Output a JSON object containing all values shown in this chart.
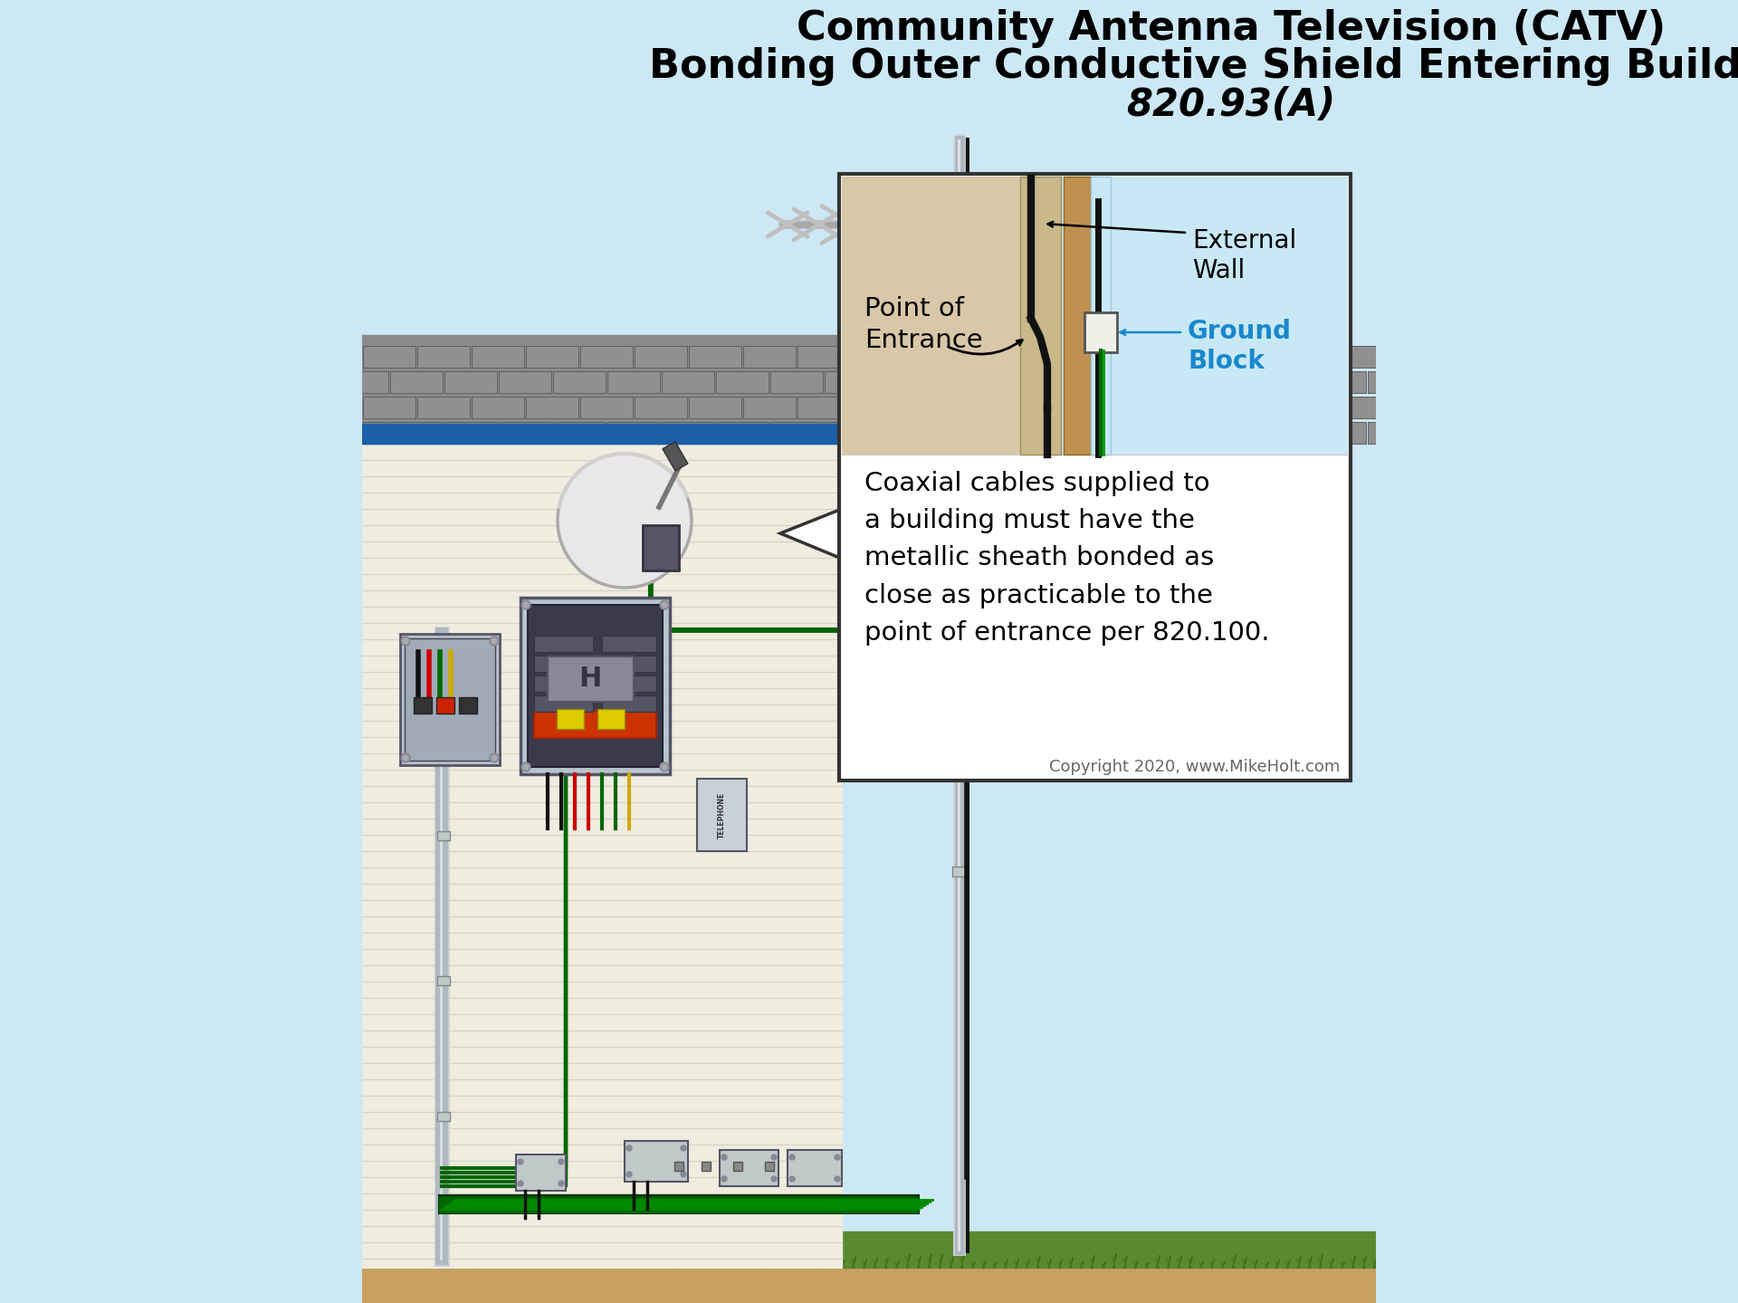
{
  "bg_color": "#cce8f4",
  "title_line1": "Community Antenna Television (CATV)",
  "title_line2": "Bonding Outer Conductive Shield Entering Building",
  "title_line3": "820.93(A)",
  "title_color": "#000000",
  "title_fontsize": 32,
  "house_wall_color": "#f0ece0",
  "house_siding_lines": "#d8d4c4",
  "roof_brick_color": "#909090",
  "roof_trim_color": "#1a5fa8",
  "ground_color": "#c8a060",
  "grass_color": "#5a8a30",
  "inset_bg_top": "#c8e8f5",
  "inset_wall_tan": "#d0bc9a",
  "inset_wood": "#c8a060",
  "inset_wood_dark": "#b88840",
  "label_external_wall": "External\nWall",
  "label_ground_block": "Ground\nBlock",
  "label_ground_block_color": "#1a88cc",
  "label_point_entrance": "Point of\nEntrance",
  "callout_text": "Coaxial cables supplied to\na building must have the\nmetallic sheath bonded as\nclose as practicable to the\npoint of entrance per 820.100.",
  "copyright_text": "Copyright 2020, www.MikeHolt.com",
  "wire_green": "#006600",
  "wire_black": "#111111",
  "wire_red": "#cc0000",
  "wire_white": "#e8e8e8",
  "wire_yellow": "#ccaa00",
  "conduit_color": "#b8c0c8",
  "conduit_dark": "#8090a0",
  "panel_color": "#b0bcc8",
  "panel_dark": "#8898a8",
  "antenna_color": "#b8b8b8",
  "satellite_color": "#d8d8d8",
  "box_outer_color": "#c8d0d8",
  "box_inner_dark": "#444455"
}
